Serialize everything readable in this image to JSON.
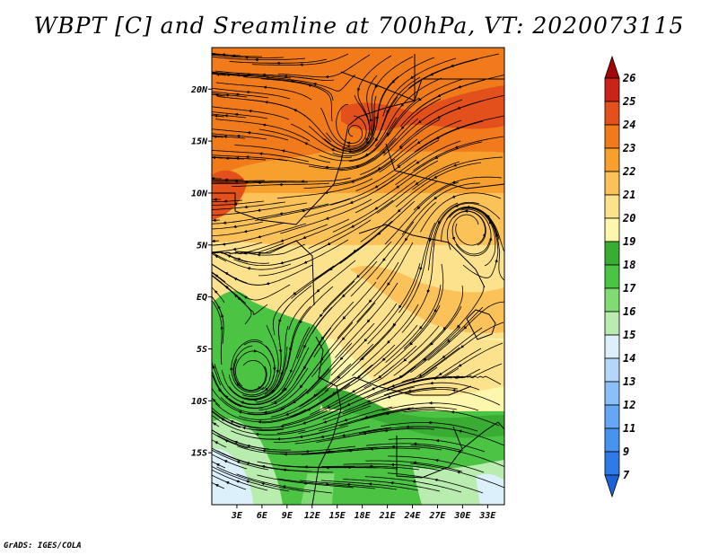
{
  "title": "WBPT [C] and Sreamline at 700hPa, VT: 2020073115",
  "credit": "GrADS: IGES/COLA",
  "field": {
    "variable": "WBPT",
    "units": "C",
    "level": "700hPa",
    "valid_time": "2020073115"
  },
  "map": {
    "lon_range": [
      0,
      35
    ],
    "lat_range": [
      -20,
      24
    ],
    "x_tick_labels": [
      "3E",
      "6E",
      "9E",
      "12E",
      "15E",
      "18E",
      "21E",
      "24E",
      "27E",
      "30E",
      "33E"
    ],
    "x_tick_values": [
      3,
      6,
      9,
      12,
      15,
      18,
      21,
      24,
      27,
      30,
      33
    ],
    "y_tick_labels": [
      "20N",
      "15N",
      "10N",
      "5N",
      "EQ",
      "5S",
      "10S",
      "15S"
    ],
    "y_tick_values": [
      20,
      15,
      10,
      5,
      0,
      -5,
      -10,
      -15
    ]
  },
  "colorbar": {
    "labels": [
      "7",
      "9",
      "11",
      "12",
      "13",
      "14",
      "15",
      "16",
      "17",
      "18",
      "19",
      "20",
      "21",
      "22",
      "23",
      "24",
      "25",
      "26"
    ],
    "colors": [
      "#1d62d6",
      "#2f7ae8",
      "#4892f0",
      "#64a8f5",
      "#8bbff7",
      "#b4d7f9",
      "#dcf0fb",
      "#b9ecaf",
      "#7fdb72",
      "#4cc443",
      "#39ad33",
      "#fdf6ad",
      "#fce28c",
      "#fbc25a",
      "#f8a02e",
      "#f17b1a",
      "#e4501b",
      "#c82419",
      "#a10808"
    ]
  },
  "zones": [
    {
      "lat": 24,
      "value": 23.4
    },
    {
      "lat": 18,
      "value": 23.1
    },
    {
      "lat": 14,
      "value": 22.3
    },
    {
      "lat": 10,
      "value": 21.4
    },
    {
      "lat": 5,
      "value": 20.5
    },
    {
      "lat": 1,
      "value": 20.0
    },
    {
      "lat": -4,
      "value": 19.6
    },
    {
      "lat": -8,
      "value": 19.0
    },
    {
      "lat": -11,
      "value": 17.7
    },
    {
      "lat": -14,
      "value": 17.3
    },
    {
      "lat": -17,
      "value": 16.5
    },
    {
      "lat": -20,
      "value": 15.6
    }
  ]
}
